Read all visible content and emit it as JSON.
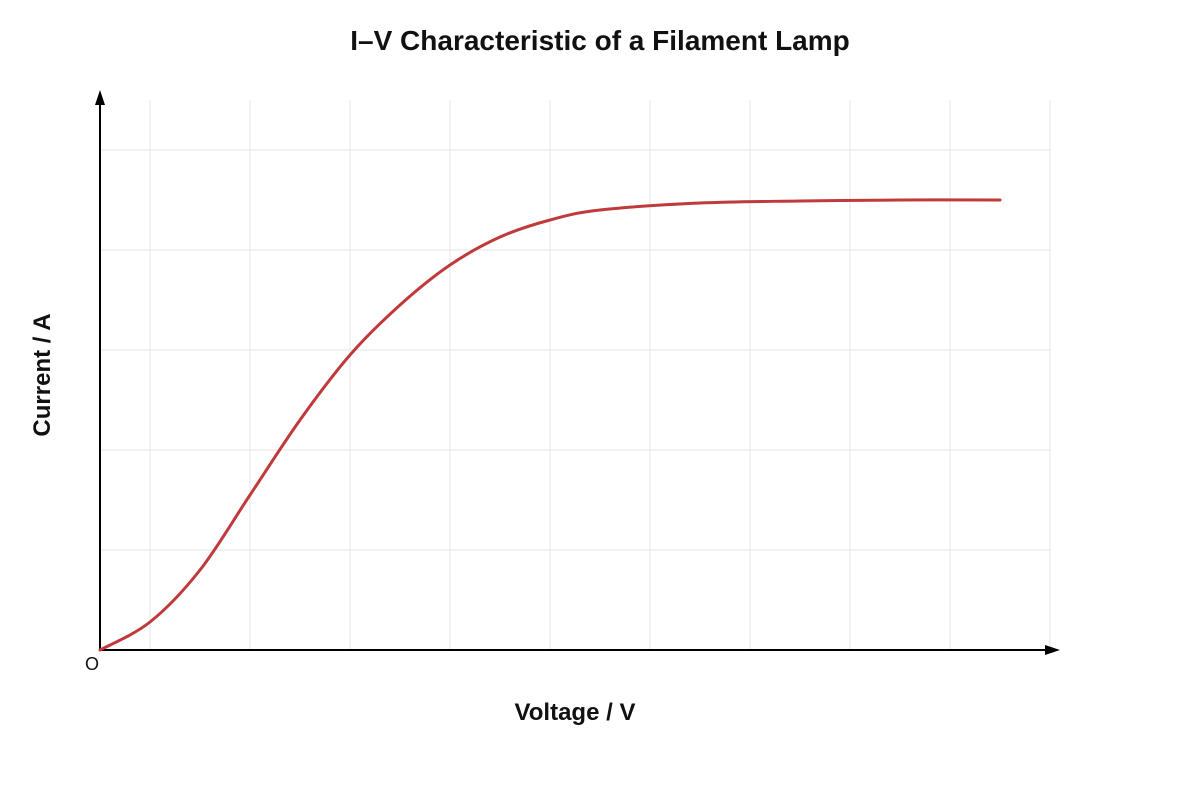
{
  "chart_data": {
    "type": "line",
    "title": "I–V Characteristic of a Filament Lamp",
    "xlabel": "Voltage / V",
    "ylabel": "Current / A",
    "origin_label": "O",
    "xlim": [
      0,
      9.5
    ],
    "ylim": [
      0,
      5.5
    ],
    "grid": true,
    "legend": "none",
    "series": [
      {
        "color": "#c0393b",
        "points": [
          [
            0,
            0
          ],
          [
            0.5,
            0.28
          ],
          [
            1.0,
            0.8
          ],
          [
            1.5,
            1.55
          ],
          [
            2.0,
            2.3
          ],
          [
            2.5,
            2.95
          ],
          [
            3.0,
            3.45
          ],
          [
            3.5,
            3.85
          ],
          [
            4.0,
            4.13
          ],
          [
            4.5,
            4.3
          ],
          [
            5.0,
            4.4
          ],
          [
            6.0,
            4.47
          ],
          [
            7.0,
            4.49
          ],
          [
            8.0,
            4.5
          ],
          [
            9.0,
            4.5
          ]
        ]
      }
    ]
  }
}
